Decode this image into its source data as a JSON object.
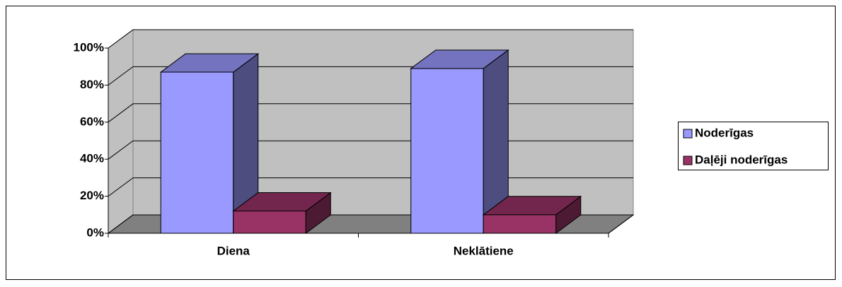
{
  "chart_data": {
    "type": "bar",
    "categories": [
      "Diena",
      "Neklātiene"
    ],
    "series": [
      {
        "name": "Noderīgas",
        "color": "#9999ff",
        "values": [
          87,
          89
        ]
      },
      {
        "name": "Daļēji noderīgas",
        "color": "#993366",
        "values": [
          12,
          10
        ]
      }
    ],
    "ylim": [
      0,
      100
    ],
    "yticks": [
      {
        "value": 0,
        "label": "0%"
      },
      {
        "value": 20,
        "label": "20%"
      },
      {
        "value": 40,
        "label": "40%"
      },
      {
        "value": 60,
        "label": "60%"
      },
      {
        "value": 80,
        "label": "80%"
      },
      {
        "value": 100,
        "label": "100%"
      }
    ],
    "grid": true,
    "legend": "right"
  }
}
